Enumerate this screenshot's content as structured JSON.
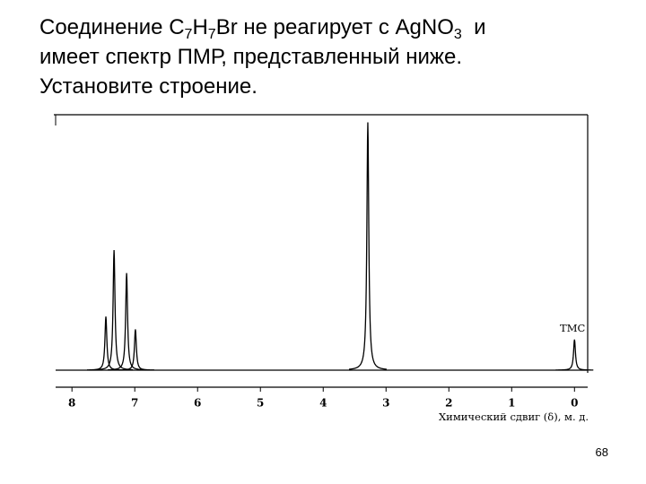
{
  "heading": {
    "line1": [
      "Соединение C",
      "7",
      "H",
      "7",
      "Br не реагирует с AgNO",
      "3",
      "  и"
    ],
    "line2": "имеет спектр ПМР, представленный ниже.",
    "line3": "Установите строение."
  },
  "chart_data": {
    "type": "spectrum",
    "x_label": "Химический сдвиг (δ), м. д.",
    "annotation": "ТМС",
    "xlim": [
      8.26,
      -0.21
    ],
    "xticks": [
      8,
      7,
      6,
      5,
      4,
      3,
      2,
      1,
      0
    ],
    "ylim": [
      0,
      100
    ],
    "color": "#000000",
    "peaks": [
      {
        "x": 7.46,
        "height": 21
      },
      {
        "x": 7.33,
        "height": 47
      },
      {
        "x": 7.13,
        "height": 38
      },
      {
        "x": 6.99,
        "height": 16
      },
      {
        "x": 3.29,
        "height": 97
      },
      {
        "x": 0,
        "height": 12
      }
    ]
  },
  "page_number": "68"
}
